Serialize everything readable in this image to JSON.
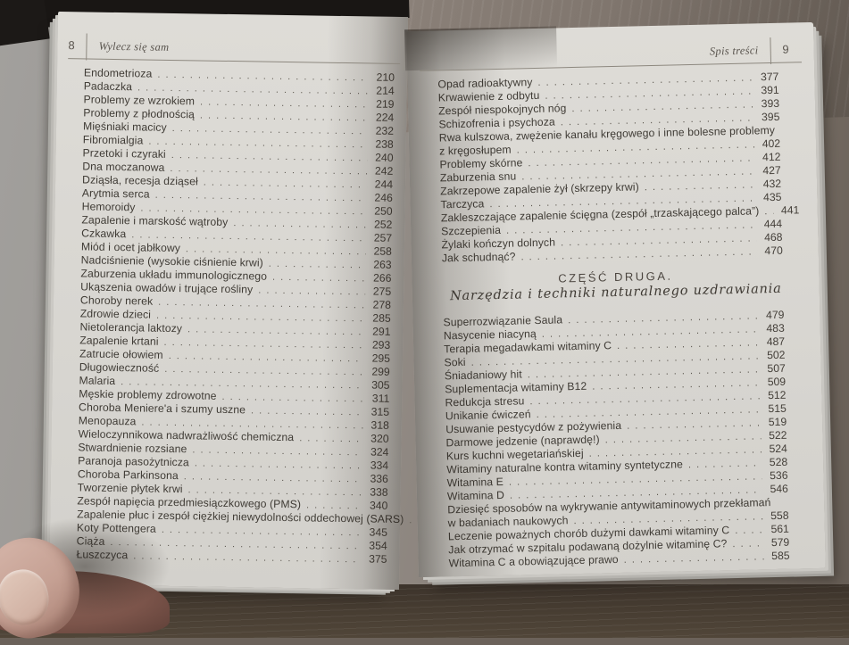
{
  "left_page": {
    "page_number": "8",
    "running_title": "Wylecz się sam",
    "entries": [
      {
        "label": "Endometrioza",
        "page": "210"
      },
      {
        "label": "Padaczka",
        "page": "214"
      },
      {
        "label": "Problemy ze wzrokiem",
        "page": "219"
      },
      {
        "label": "Problemy z płodnością",
        "page": "224"
      },
      {
        "label": "Mięśniaki macicy",
        "page": "232"
      },
      {
        "label": "Fibromialgia",
        "page": "238"
      },
      {
        "label": "Przetoki i czyraki",
        "page": "240"
      },
      {
        "label": "Dna moczanowa",
        "page": "242"
      },
      {
        "label": "Dziąsła, recesja dziąseł",
        "page": "244"
      },
      {
        "label": "Arytmia serca",
        "page": "246"
      },
      {
        "label": "Hemoroidy",
        "page": "250"
      },
      {
        "label": "Zapalenie i marskość wątroby",
        "page": "252"
      },
      {
        "label": "Czkawka",
        "page": "257"
      },
      {
        "label": "Miód i ocet jabłkowy",
        "page": "258"
      },
      {
        "label": "Nadciśnienie (wysokie ciśnienie krwi)",
        "page": "263"
      },
      {
        "label": "Zaburzenia układu immunologicznego",
        "page": "266"
      },
      {
        "label": "Ukąszenia owadów i trujące rośliny",
        "page": "275"
      },
      {
        "label": "Choroby nerek",
        "page": "278"
      },
      {
        "label": "Zdrowie dzieci",
        "page": "285"
      },
      {
        "label": "Nietolerancja laktozy",
        "page": "291"
      },
      {
        "label": "Zapalenie krtani",
        "page": "293"
      },
      {
        "label": "Zatrucie ołowiem",
        "page": "295"
      },
      {
        "label": "Długowieczność",
        "page": "299"
      },
      {
        "label": "Malaria",
        "page": "305"
      },
      {
        "label": "Męskie problemy zdrowotne",
        "page": "311"
      },
      {
        "label": "Choroba Meniere'a i szumy uszne",
        "page": "315"
      },
      {
        "label": "Menopauza",
        "page": "318"
      },
      {
        "label": "Wieloczynnikowa nadwrażliwość chemiczna",
        "page": "320"
      },
      {
        "label": "Stwardnienie rozsiane",
        "page": "324"
      },
      {
        "label": "Paranoja pasożytnicza",
        "page": "334"
      },
      {
        "label": "Choroba Parkinsona",
        "page": "336"
      },
      {
        "label": "Tworzenie płytek krwi",
        "page": "338"
      },
      {
        "label": "Zespół napięcia przedmiesiączkowego (PMS)",
        "page": "340"
      },
      {
        "label": "Zapalenie płuc i zespół ciężkiej niewydolności oddechowej (SARS)",
        "page": "343"
      },
      {
        "label": "Koty Pottengera",
        "page": "345"
      },
      {
        "label": "Ciąża",
        "page": "354"
      },
      {
        "label": "Łuszczyca",
        "page": "375"
      }
    ]
  },
  "right_page": {
    "page_number": "9",
    "running_title": "Spis treści",
    "entries_part1": [
      {
        "label": "Opad radioaktywny",
        "page": "377"
      },
      {
        "label": "Krwawienie z odbytu",
        "page": "391"
      },
      {
        "label": "Zespół niespokojnych nóg",
        "page": "393"
      },
      {
        "label": "Schizofrenia i psychoza",
        "page": "395"
      },
      {
        "label": "Rwa kulszowa, zwężenie kanału kręgowego i inne bolesne problemy",
        "page": ""
      },
      {
        "label": "z kręgosłupem",
        "page": "402"
      },
      {
        "label": "Problemy skórne",
        "page": "412"
      },
      {
        "label": "Zaburzenia snu",
        "page": "427"
      },
      {
        "label": "Zakrzepowe zapalenie żył (skrzepy krwi)",
        "page": "432"
      },
      {
        "label": "Tarczyca",
        "page": "435"
      },
      {
        "label": "Zakleszczające zapalenie ścięgna (zespół „trzaskającego palca”)",
        "page": "441"
      },
      {
        "label": "Szczepienia",
        "page": "444"
      },
      {
        "label": "Żylaki kończyn dolnych",
        "page": "468"
      },
      {
        "label": "Jak schudnąć?",
        "page": "470"
      }
    ],
    "section": {
      "kicker": "CZĘŚĆ DRUGA.",
      "title": "Narzędzia i techniki naturalnego uzdrawiania"
    },
    "entries_part2": [
      {
        "label": "Superrozwiązanie Saula",
        "page": "479"
      },
      {
        "label": "Nasycenie niacyną",
        "page": "483"
      },
      {
        "label": "Terapia megadawkami witaminy C",
        "page": "487"
      },
      {
        "label": "Soki",
        "page": "502"
      },
      {
        "label": "Śniadaniowy hit",
        "page": "507"
      },
      {
        "label": "Suplementacja witaminy B12",
        "page": "509"
      },
      {
        "label": "Redukcja stresu",
        "page": "512"
      },
      {
        "label": "Unikanie ćwiczeń",
        "page": "515"
      },
      {
        "label": "Usuwanie pestycydów z pożywienia",
        "page": "519"
      },
      {
        "label": "Darmowe jedzenie (naprawdę!)",
        "page": "522"
      },
      {
        "label": "Kurs kuchni wegetariańskiej",
        "page": "524"
      },
      {
        "label": "Witaminy naturalne kontra witaminy syntetyczne",
        "page": "528"
      },
      {
        "label": "Witamina E",
        "page": "536"
      },
      {
        "label": "Witamina D",
        "page": "546"
      },
      {
        "label": "Dziesięć sposobów na wykrywanie antywitaminowych przekłamań",
        "page": ""
      },
      {
        "label": "w badaniach naukowych",
        "page": "558"
      },
      {
        "label": "Leczenie poważnych chorób dużymi dawkami witaminy C",
        "page": "561"
      },
      {
        "label": "Jak otrzymać w szpitalu podawaną dożylnie witaminę C?",
        "page": "579"
      },
      {
        "label": "Witamina C a obowiązujące prawo",
        "page": "585"
      }
    ]
  }
}
